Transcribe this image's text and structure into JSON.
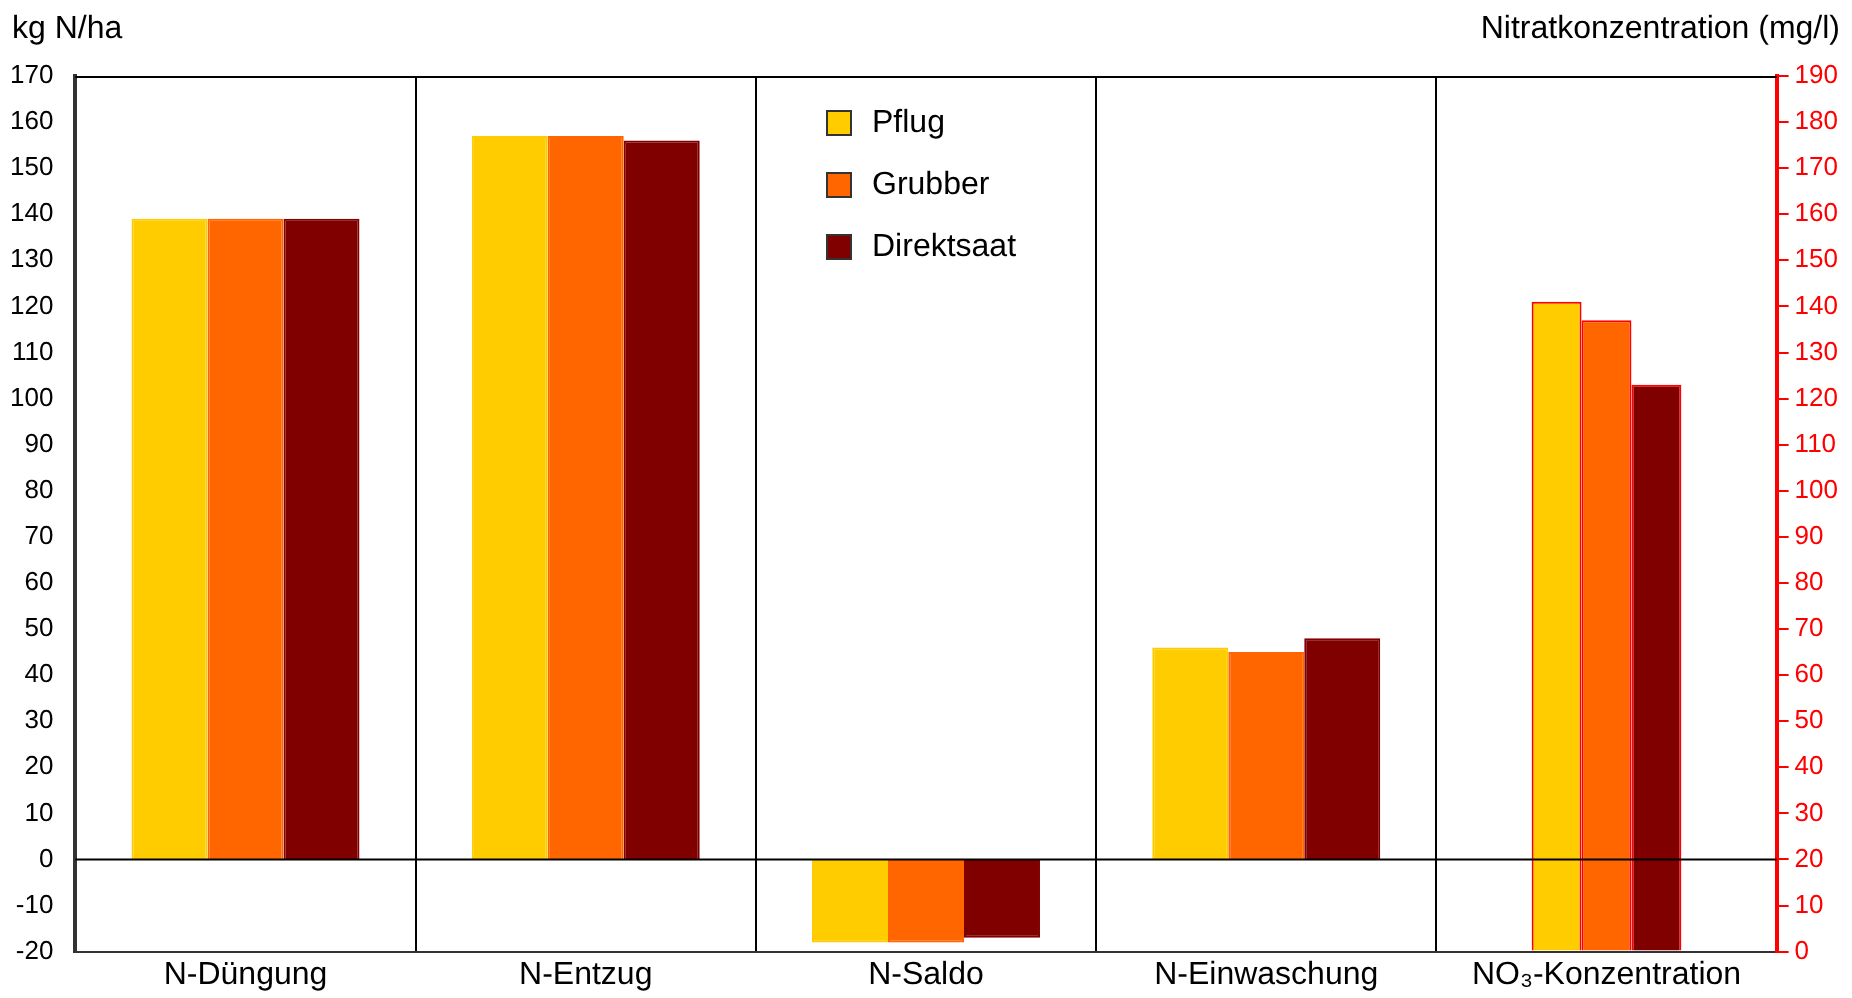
{
  "chart_data": {
    "type": "bar",
    "ylabel": "kg N/ha",
    "y2label": "Nitratkonzentration (mg/l)",
    "categories": [
      "N-Düngung",
      "N-Entzug",
      "N-Saldo",
      "N-Einwaschung",
      "NO₃-Konzentration"
    ],
    "series": [
      {
        "name": "Pflug",
        "color": "#ffcc00",
        "values": [
          139,
          157,
          -18,
          46,
          null
        ]
      },
      {
        "name": "Grubber",
        "color": "#ff6600",
        "values": [
          139,
          157,
          -18,
          45,
          null
        ]
      },
      {
        "name": "Direktsaat",
        "color": "#800000",
        "values": [
          139,
          156,
          -17,
          48,
          null
        ]
      },
      {
        "color": "#ffcc00",
        "axis": "y2",
        "values": [
          null,
          null,
          null,
          null,
          141
        ]
      },
      {
        "color": "#ff6600",
        "axis": "y2",
        "values": [
          null,
          null,
          null,
          null,
          137
        ]
      },
      {
        "color": "#800000",
        "axis": "y2",
        "values": [
          null,
          null,
          null,
          null,
          123
        ]
      }
    ],
    "ylim": [
      -20,
      170
    ],
    "yticks": [
      -20,
      -10,
      0,
      10,
      20,
      30,
      40,
      50,
      60,
      70,
      80,
      90,
      100,
      110,
      120,
      130,
      140,
      150,
      160,
      170
    ],
    "y2lim": [
      0,
      190
    ],
    "y2ticks": [
      0,
      10,
      20,
      30,
      40,
      50,
      60,
      70,
      80,
      90,
      100,
      110,
      120,
      130,
      140,
      150,
      160,
      170,
      180,
      190
    ],
    "ref_lines": [
      {
        "axis": "y",
        "value": 0
      }
    ],
    "grid": "x",
    "legend": "top"
  }
}
